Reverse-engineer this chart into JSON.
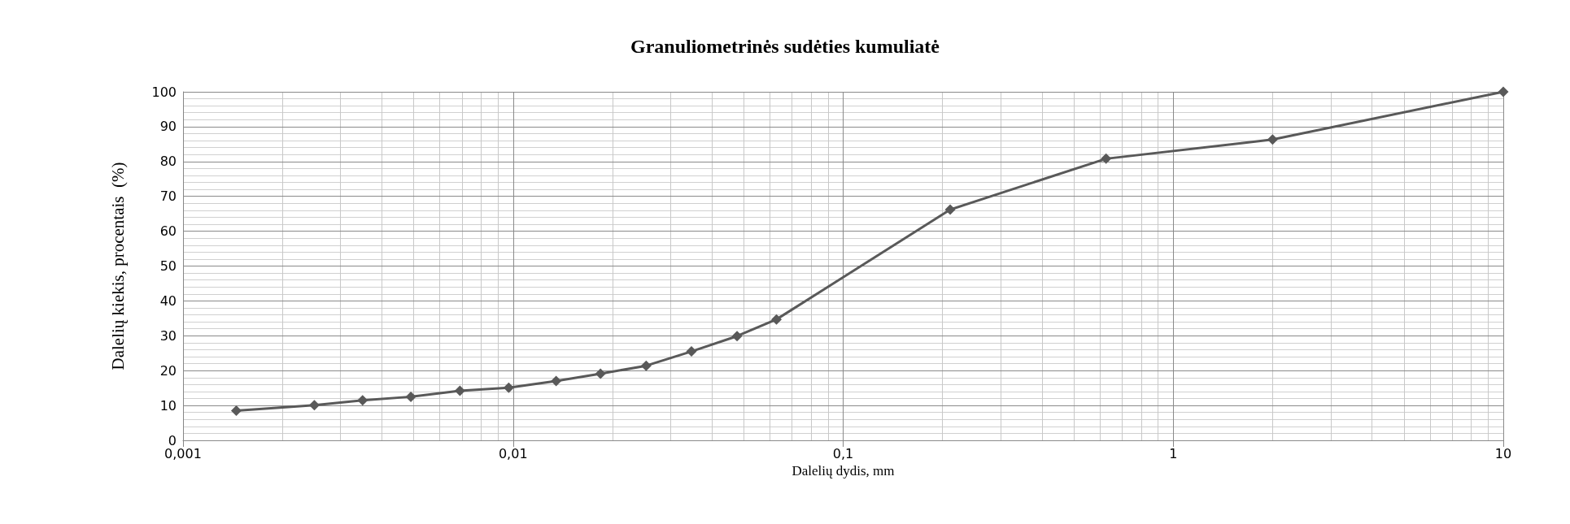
{
  "chart_data": {
    "type": "line",
    "title": "Granuliometrinės sudėties kumuliatė",
    "xlabel": "Dalelių dydis, mm",
    "ylabel": "Dalelių kiekis, procentais  (%)",
    "x": [
      0.00145,
      0.0025,
      0.0035,
      0.0049,
      0.0069,
      0.0097,
      0.0135,
      0.0184,
      0.0253,
      0.0347,
      0.0477,
      0.0628,
      0.211,
      0.626,
      2,
      10
    ],
    "series": [
      {
        "color": "#595959",
        "values": [
          8.5,
          10.1,
          11.5,
          12.5,
          14.2,
          15.1,
          17.0,
          19.1,
          21.4,
          25.5,
          29.9,
          34.7,
          66.2,
          80.8,
          86.3,
          100
        ]
      }
    ],
    "log": "x",
    "xlim": [
      0.001,
      10
    ],
    "xticks": [
      {
        "value": 0.001,
        "label": "0,001"
      },
      {
        "value": 0.01,
        "label": "0,01"
      },
      {
        "value": 0.1,
        "label": "0,1"
      },
      1,
      10
    ],
    "ylim": [
      0,
      100
    ],
    "yticks": [
      0,
      10,
      20,
      30,
      40,
      50,
      60,
      70,
      80,
      90,
      100
    ],
    "grid": true,
    "marker": "diamond",
    "line_style": "solid"
  }
}
